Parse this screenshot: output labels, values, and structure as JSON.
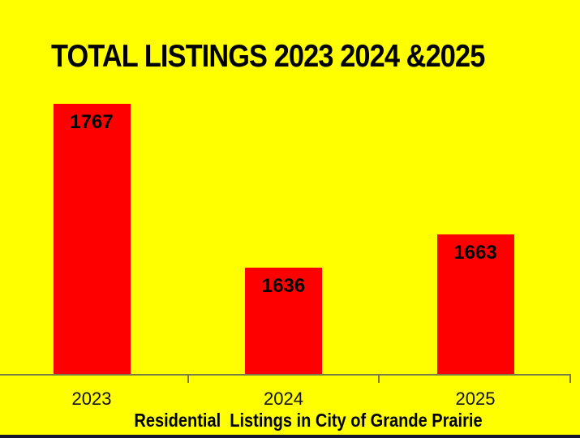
{
  "slide": {
    "title": "TOTAL LISTINGS 2023 2024 &2025",
    "caption": "Residential  Listings in City of Grande Prairie"
  },
  "chart_data": {
    "type": "bar",
    "title": "TOTAL LISTINGS 2023 2024 &2025",
    "xlabel": "Residential  Listings in City of Grande Prairie",
    "ylabel": "",
    "categories": [
      "2023",
      "2024",
      "2025"
    ],
    "values": [
      1767,
      1636,
      1663
    ],
    "data_labels": [
      1767,
      1636,
      1663
    ],
    "ylim": [
      1550,
      1790
    ],
    "grid": false,
    "legend": false,
    "y_axis_visible": false,
    "bar_color": "#FF0000",
    "background_color": "#FFFF00",
    "label_color": "#000000",
    "axis_color": "#7b7b45",
    "banner_color": "#15152f"
  }
}
